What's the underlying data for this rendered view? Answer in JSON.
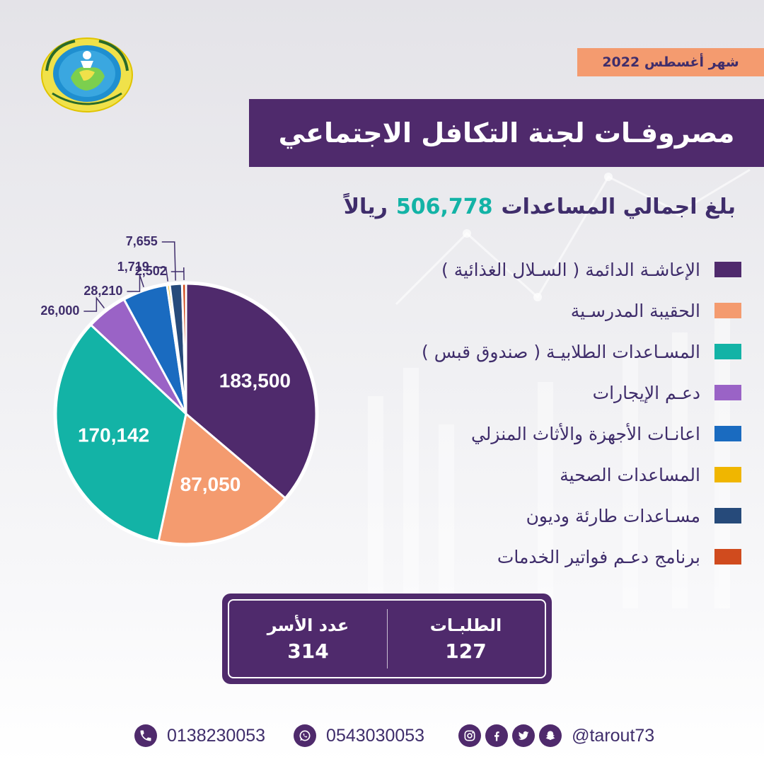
{
  "header": {
    "month": "شهر أغسطس 2022",
    "title": "مصروفـات لجنة التكافل الاجتماعي"
  },
  "total": {
    "prefix": "بلغ اجمالي المساعدات",
    "value": "506,778",
    "unit": "ريالاً"
  },
  "chart_data": {
    "type": "pie",
    "title": "",
    "total": 506778,
    "start_angle_deg": 0,
    "direction": "clockwise",
    "categories": [
      "الإعاشـة الدائمة ( السـلال الغذائية )",
      "الحقيبة المدرسـية",
      "المسـاعدات الطلابيـة ( صندوق قبس )",
      "دعـم الإيجارات",
      "اعانـات الأجهزة والأثاث المنزلي",
      "المساعدات الصحية",
      "مسـاعدات طارئة وديون",
      "برنامج دعـم فواتير الخدمات"
    ],
    "values": [
      183500,
      87050,
      170142,
      26000,
      28210,
      1719,
      7655,
      2502
    ],
    "value_labels": [
      "183,500",
      "87,050",
      "170,142",
      "26,000",
      "28,210",
      "1,719",
      "7,655",
      "2,502"
    ],
    "colors": [
      "#4f2a6c",
      "#f49b6f",
      "#13b3a6",
      "#9a63c6",
      "#1a6bc0",
      "#f0b600",
      "#264a7a",
      "#d04b1e"
    ],
    "legend_position": "right"
  },
  "stats": {
    "requests_label": "الطلبـات",
    "requests_value": "127",
    "families_label": "عدد الأسر",
    "families_value": "314"
  },
  "footer": {
    "phone": "0138230053",
    "whatsapp": "0543030053",
    "handle": "@tarout73",
    "icons": [
      "phone-icon",
      "whatsapp-icon",
      "instagram-icon",
      "facebook-icon",
      "twitter-icon",
      "snapchat-icon"
    ]
  }
}
